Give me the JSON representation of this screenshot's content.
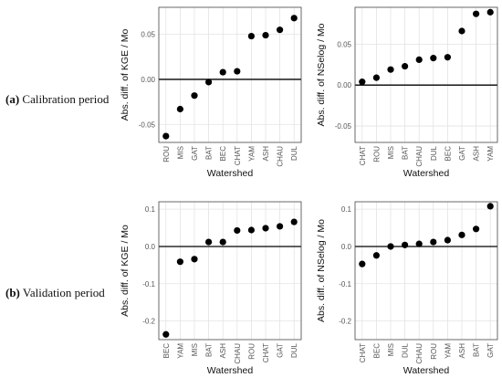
{
  "rows": [
    {
      "letter": "(a)",
      "text": " Calibration period"
    },
    {
      "letter": "(b)",
      "text": " Validation period"
    }
  ],
  "chart_data": [
    {
      "type": "scatter",
      "xlabel": "Watershed",
      "ylabel": "Abs. diff. of KGE / Mo",
      "ylim": [
        -0.07,
        0.08
      ],
      "yticks": [
        -0.05,
        0.0,
        0.05
      ],
      "ytick_labels": [
        "-0.05",
        "0.00",
        "0.05"
      ],
      "grid": true,
      "categories": [
        "ROU",
        "MIS",
        "GAT",
        "BAT",
        "BEC",
        "CHAT",
        "YAM",
        "ASH",
        "CHAU",
        "DUL"
      ],
      "values": [
        -0.063,
        -0.033,
        -0.018,
        -0.003,
        0.008,
        0.009,
        0.048,
        0.049,
        0.055,
        0.068
      ]
    },
    {
      "type": "scatter",
      "xlabel": "Watershed",
      "ylabel": "Abs. diff. of NSelog / Mo",
      "ylim": [
        -0.07,
        0.095
      ],
      "yticks": [
        -0.05,
        0.0,
        0.05
      ],
      "ytick_labels": [
        "-0.05",
        "0.00",
        "0.05"
      ],
      "grid": true,
      "categories": [
        "CHAT",
        "ROU",
        "MIS",
        "BAT",
        "CHAU",
        "DUL",
        "BEC",
        "GAT",
        "ASH",
        "YAM"
      ],
      "values": [
        0.004,
        0.009,
        0.019,
        0.023,
        0.031,
        0.033,
        0.034,
        0.066,
        0.087,
        0.089
      ]
    },
    {
      "type": "scatter",
      "xlabel": "Watershed",
      "ylabel": "Abs. diff. of KGE / Mo",
      "ylim": [
        -0.25,
        0.12
      ],
      "yticks": [
        -0.2,
        -0.1,
        0.0,
        0.1
      ],
      "ytick_labels": [
        "-0.2",
        "-0.1",
        "0.0",
        "0.1"
      ],
      "grid": true,
      "categories": [
        "BEC",
        "YAM",
        "MIS",
        "BAT",
        "ASH",
        "CHAU",
        "ROU",
        "CHAT",
        "GAT",
        "DUL"
      ],
      "values": [
        -0.236,
        -0.041,
        -0.034,
        0.012,
        0.012,
        0.043,
        0.044,
        0.049,
        0.054,
        0.066
      ]
    },
    {
      "type": "scatter",
      "xlabel": "Watershed",
      "ylabel": "Abs. diff. of NSelog / Mo",
      "ylim": [
        -0.25,
        0.12
      ],
      "yticks": [
        -0.2,
        -0.1,
        0.0,
        0.1
      ],
      "ytick_labels": [
        "-0.2",
        "-0.1",
        "0.0",
        "0.1"
      ],
      "grid": true,
      "categories": [
        "CHAT",
        "BEC",
        "MIS",
        "DUL",
        "CHAU",
        "ROU",
        "YAM",
        "ASH",
        "BAT",
        "GAT"
      ],
      "values": [
        -0.047,
        -0.024,
        0.0,
        0.004,
        0.007,
        0.012,
        0.017,
        0.031,
        0.047,
        0.108
      ]
    }
  ]
}
